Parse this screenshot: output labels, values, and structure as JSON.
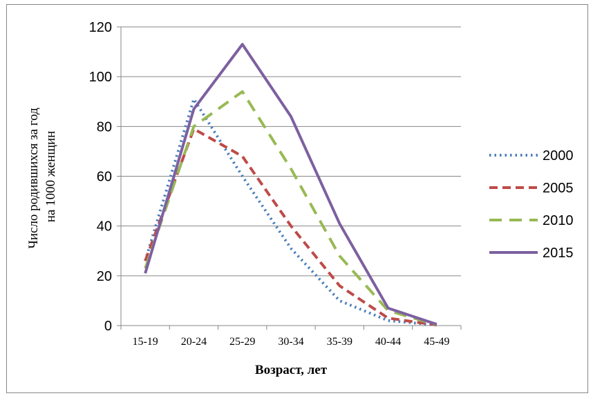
{
  "chart_data": {
    "type": "line",
    "categories": [
      "15-19",
      "20-24",
      "25-29",
      "30-34",
      "35-39",
      "40-44",
      "45-49"
    ],
    "ylabel_lines": [
      "Число родившихся за год",
      "на 1000 женщин"
    ],
    "xlabel": "Возраст, лет",
    "ylim": [
      0,
      120
    ],
    "yticks": [
      0,
      20,
      40,
      60,
      80,
      100,
      120
    ],
    "grid": true,
    "legend_position": "right",
    "series": [
      {
        "name": "2000",
        "values": [
          26,
          91,
          60,
          31,
          10,
          2,
          0.2
        ],
        "color": "#4a7ebb",
        "style": "dotted"
      },
      {
        "name": "2005",
        "values": [
          26,
          79,
          68,
          40,
          16,
          3,
          0.2
        ],
        "color": "#be4b48",
        "style": "dashed"
      },
      {
        "name": "2010",
        "values": [
          23,
          80,
          94,
          63,
          28,
          6,
          0.3
        ],
        "color": "#98b954",
        "style": "longdash"
      },
      {
        "name": "2015",
        "values": [
          21,
          87,
          113,
          84,
          41,
          7,
          0.5
        ],
        "color": "#7d60a0",
        "style": "solid"
      }
    ]
  }
}
